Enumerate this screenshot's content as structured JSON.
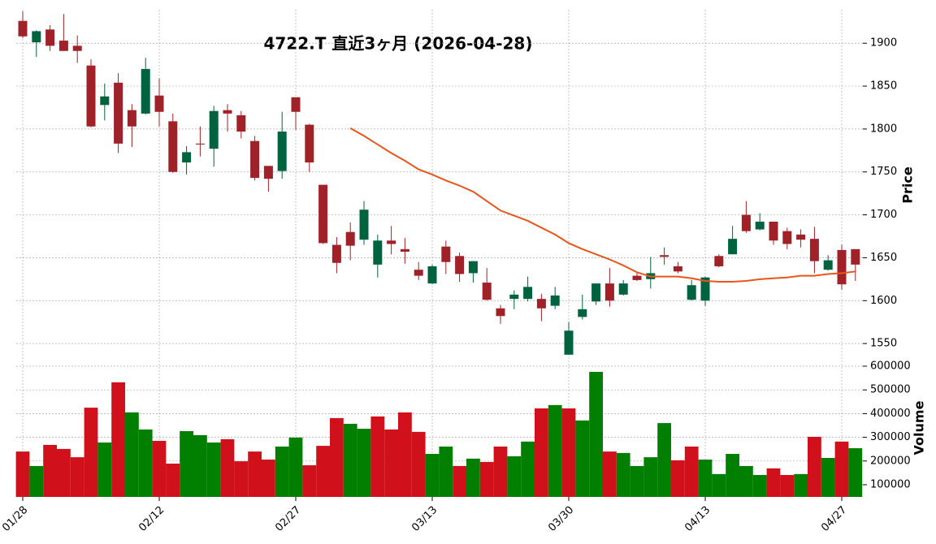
{
  "chart_data": [
    {
      "type": "candlestick",
      "title": "4722.T  直近3ヶ月  (2026-04-28)",
      "ylabel": "Price",
      "up_color": "#006340",
      "down_color": "#a02128",
      "open": [
        1926,
        1901,
        1916,
        1903,
        1897,
        1874,
        1828,
        1854,
        1822,
        1818,
        1839,
        1809,
        1761,
        1783,
        1777,
        1822,
        1816,
        1786,
        1757,
        1751,
        1837,
        1805,
        1735,
        1665,
        1680,
        1671,
        1642,
        1670,
        1660,
        1636,
        1620,
        1663,
        1652,
        1632,
        1621,
        1591,
        1602,
        1602,
        1602,
        1594,
        1537,
        1581,
        1599,
        1620,
        1607,
        1629,
        1625,
        1653,
        1640,
        1601,
        1600,
        1652,
        1654,
        1700,
        1683,
        1692,
        1681,
        1677,
        1672,
        1636,
        1659,
        1660
      ],
      "high": [
        1937,
        1915,
        1921,
        1934,
        1909,
        1881,
        1853,
        1865,
        1829,
        1883,
        1859,
        1818,
        1780,
        1803,
        1827,
        1829,
        1821,
        1792,
        1757,
        1820,
        1837,
        1806,
        1735,
        1674,
        1691,
        1716,
        1677,
        1687,
        1673,
        1645,
        1642,
        1670,
        1656,
        1646,
        1638,
        1595,
        1612,
        1628,
        1608,
        1616,
        1575,
        1607,
        1620,
        1638,
        1624,
        1632,
        1651,
        1662,
        1645,
        1624,
        1628,
        1654,
        1687,
        1716,
        1702,
        1692,
        1685,
        1683,
        1686,
        1653,
        1665,
        1660
      ],
      "low": [
        1906,
        1884,
        1891,
        1891,
        1877,
        1802,
        1810,
        1772,
        1779,
        1817,
        1803,
        1749,
        1747,
        1768,
        1756,
        1797,
        1789,
        1740,
        1727,
        1742,
        1799,
        1750,
        1666,
        1632,
        1647,
        1665,
        1627,
        1654,
        1643,
        1624,
        1619,
        1631,
        1622,
        1621,
        1600,
        1573,
        1590,
        1599,
        1576,
        1590,
        1537,
        1578,
        1595,
        1593,
        1606,
        1623,
        1614,
        1642,
        1632,
        1600,
        1594,
        1639,
        1654,
        1679,
        1682,
        1665,
        1660,
        1662,
        1632,
        1635,
        1613,
        1623
      ],
      "close": [
        1908,
        1914,
        1897,
        1891,
        1891,
        1803,
        1838,
        1783,
        1803,
        1870,
        1820,
        1750,
        1773,
        1782,
        1821,
        1818,
        1797,
        1743,
        1742,
        1797,
        1820,
        1761,
        1667,
        1644,
        1664,
        1706,
        1670,
        1666,
        1657,
        1629,
        1640,
        1645,
        1631,
        1646,
        1601,
        1582,
        1607,
        1616,
        1591,
        1606,
        1565,
        1590,
        1620,
        1600,
        1620,
        1624,
        1632,
        1651,
        1634,
        1618,
        1627,
        1640,
        1672,
        1681,
        1692,
        1670,
        1666,
        1671,
        1646,
        1647,
        1619,
        1642
      ],
      "lines": [
        {
          "color": "#e8561a",
          "values": [
            null,
            null,
            null,
            null,
            null,
            null,
            null,
            null,
            null,
            null,
            null,
            null,
            null,
            null,
            null,
            null,
            null,
            null,
            null,
            null,
            null,
            null,
            null,
            null,
            1801,
            1792,
            1782,
            1772,
            1763,
            1753,
            1747,
            1740,
            1734,
            1727,
            1716,
            1705,
            1699,
            1693,
            1685,
            1677,
            1667,
            1660,
            1654,
            1648,
            1641,
            1633,
            1628,
            1628,
            1628,
            1626,
            1623,
            1622,
            1622,
            1623,
            1625,
            1626,
            1627,
            1629,
            1629,
            1631,
            1632,
            1634
          ]
        }
      ],
      "ylim": [
        1534,
        1939
      ],
      "yticks": [
        1550,
        1600,
        1650,
        1700,
        1750,
        1800,
        1850,
        1900
      ],
      "grid": true
    },
    {
      "type": "bar",
      "ylabel": "Volume",
      "categories": [
        "01/28",
        null,
        null,
        null,
        null,
        null,
        null,
        null,
        null,
        null,
        "02/12",
        null,
        null,
        null,
        null,
        null,
        null,
        null,
        null,
        null,
        "02/27",
        null,
        null,
        null,
        null,
        null,
        null,
        null,
        null,
        null,
        "03/13",
        null,
        null,
        null,
        null,
        null,
        null,
        null,
        null,
        null,
        "03/30",
        null,
        null,
        null,
        null,
        null,
        null,
        null,
        null,
        null,
        "04/13",
        null,
        null,
        null,
        null,
        null,
        null,
        null,
        null,
        null,
        "04/27",
        null
      ],
      "values": [
        240000,
        179000,
        268000,
        251000,
        216000,
        425000,
        278000,
        532000,
        405000,
        333000,
        285000,
        189000,
        326000,
        309000,
        278000,
        292000,
        199000,
        240000,
        206000,
        261000,
        299000,
        182000,
        264000,
        381000,
        357000,
        336000,
        388000,
        333000,
        405000,
        323000,
        230000,
        261000,
        179000,
        210000,
        196000,
        261000,
        220000,
        282000,
        422000,
        436000,
        422000,
        371000,
        576000,
        240000,
        234000,
        179000,
        216000,
        360000,
        203000,
        261000,
        206000,
        145000,
        230000,
        179000,
        141000,
        169000,
        141000,
        145000,
        302000,
        213000,
        282000,
        254000
      ],
      "colors": [
        "#d0111c",
        "#007f00",
        "#d0111c",
        "#d0111c",
        "#d0111c",
        "#d0111c",
        "#007f00",
        "#d0111c",
        "#007f00",
        "#007f00",
        "#d0111c",
        "#d0111c",
        "#007f00",
        "#007f00",
        "#007f00",
        "#d0111c",
        "#d0111c",
        "#d0111c",
        "#d0111c",
        "#007f00",
        "#007f00",
        "#d0111c",
        "#d0111c",
        "#d0111c",
        "#007f00",
        "#007f00",
        "#d0111c",
        "#d0111c",
        "#d0111c",
        "#d0111c",
        "#007f00",
        "#007f00",
        "#d0111c",
        "#007f00",
        "#d0111c",
        "#d0111c",
        "#007f00",
        "#007f00",
        "#d0111c",
        "#007f00",
        "#d0111c",
        "#007f00",
        "#007f00",
        "#d0111c",
        "#007f00",
        "#007f00",
        "#007f00",
        "#007f00",
        "#d0111c",
        "#d0111c",
        "#007f00",
        "#007f00",
        "#007f00",
        "#007f00",
        "#007f00",
        "#d0111c",
        "#d0111c",
        "#007f00",
        "#d0111c",
        "#007f00",
        "#d0111c",
        "#007f00"
      ],
      "ylim": [
        48600,
        630800
      ],
      "yticks": [
        100000,
        200000,
        300000,
        400000,
        500000,
        600000
      ],
      "grid": true
    }
  ]
}
